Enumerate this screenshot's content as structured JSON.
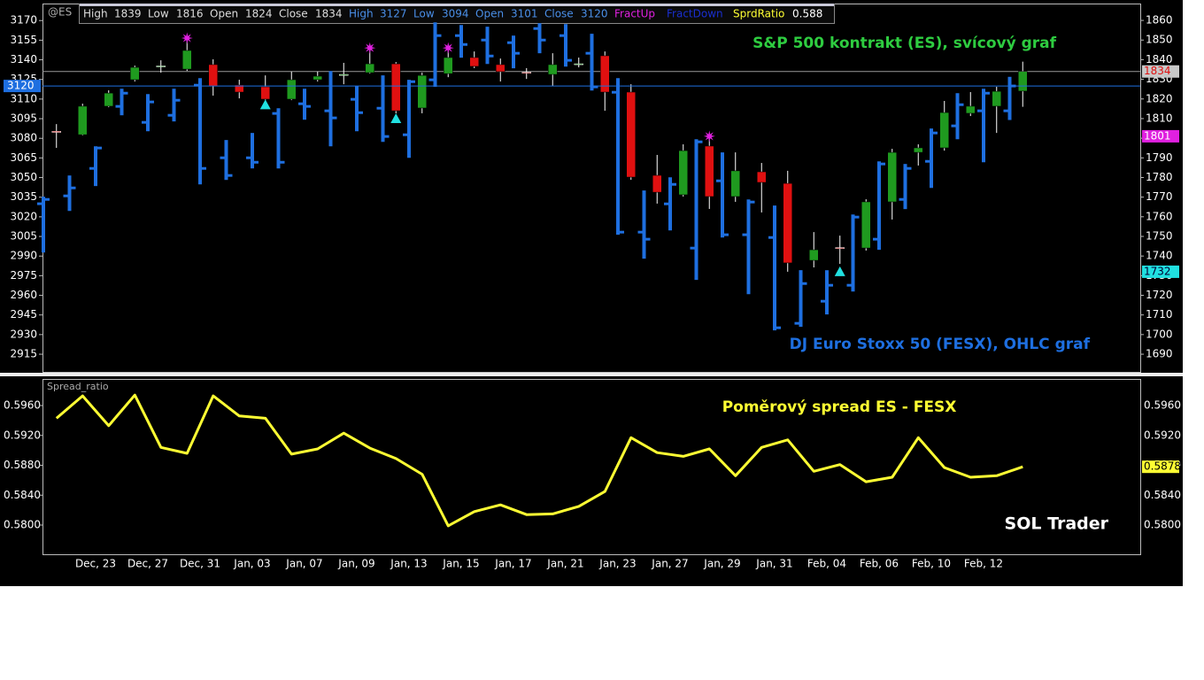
{
  "chart_data": [
    {
      "type": "candlestick",
      "symbol": "@ES",
      "info_labels": {
        "high": "High",
        "low": "Low",
        "open": "Open",
        "close": "Close"
      },
      "annotations": [
        "S&P 500 kontrakt (ES), svícový graf",
        "DJ Euro Stoxx 50 (FESX), OHLC graf"
      ],
      "ylim": [
        2901.5,
        3183
      ],
      "yticks": [
        3170,
        3155,
        3140,
        3125,
        3110,
        3095,
        3080,
        3065,
        3050,
        3035,
        3020,
        3005,
        2990,
        2975,
        2960,
        2945,
        2930,
        2915
      ],
      "y2lim": [
        1681,
        1868.6
      ],
      "y2ticks": [
        1860,
        1850,
        1840,
        1830,
        1820,
        1810,
        1800,
        1790,
        1780,
        1770,
        1760,
        1750,
        1740,
        1730,
        1720,
        1710,
        1700,
        1690
      ],
      "series": [
        {
          "style": "candle",
          "axis": "y2",
          "up_color": "#1f9a1f",
          "down_color": "#e01010",
          "wick_color": "#ffffff",
          "label_color": "#dddddd",
          "open": [
            1803.5,
            1801.8,
            1816.3,
            1829.8,
            1836.4,
            1835.2,
            1837.5,
            1827.1,
            1826.2,
            1819.9,
            1829.8,
            1832.0,
            1833.4,
            1837.9,
            1815.4,
            1832.9,
            1841.1,
            1837.5,
            1833.6,
            1832.5,
            1837.7,
            1842.0,
            1823.5,
            1781.1,
            1771.2,
            1796.0,
            1770.3,
            1782.9,
            1777.0,
            1737.8,
            1744.3,
            1744.1,
            1767.6,
            1792.8,
            1795.1,
            1812.7,
            1816.3,
            1824
          ],
          "high": [
            1807.2,
            1817.6,
            1824.4,
            1837.0,
            1839.7,
            1849.2,
            1840.2,
            1829.8,
            1832.0,
            1833.9,
            1833.9,
            1838.4,
            1844.2,
            1838.8,
            1833.4,
            1844.2,
            1844.2,
            1840.6,
            1835.7,
            1843.3,
            1841.1,
            1844.2,
            1827.5,
            1791.5,
            1796.9,
            1800.5,
            1792.8,
            1787.4,
            1783.4,
            1752.2,
            1750.4,
            1768.9,
            1794.6,
            1796.9,
            1819.0,
            1823.5,
            1826.2,
            1839
          ],
          "low": [
            1795.1,
            1801.4,
            1815.8,
            1828.9,
            1833.4,
            1834.3,
            1821.7,
            1820.3,
            1819.4,
            1819.4,
            1828.9,
            1827.5,
            1832.9,
            1812.7,
            1812.7,
            1831.1,
            1835.7,
            1828.9,
            1830.2,
            1826.6,
            1836.1,
            1814.0,
            1778.8,
            1766.7,
            1770.3,
            1764.0,
            1767.6,
            1762.2,
            1732.0,
            1734.2,
            1736.0,
            1742.8,
            1758.6,
            1786.1,
            1793.7,
            1811.3,
            1802.7,
            1816
          ],
          "close": [
            1803.0,
            1816.3,
            1823.0,
            1836.1,
            1836.8,
            1844.7,
            1826.6,
            1823.5,
            1819.9,
            1829.8,
            1831.6,
            1832.5,
            1837.9,
            1814.0,
            1832.0,
            1841.1,
            1836.6,
            1833.9,
            1833.4,
            1837.5,
            1837.9,
            1823.5,
            1780.2,
            1772.5,
            1793.7,
            1770.3,
            1783.4,
            1777.5,
            1736.5,
            1743.2,
            1744.1,
            1767.6,
            1792.8,
            1795.1,
            1813.1,
            1816.3,
            1823.9,
            1834
          ]
        },
        {
          "style": "ohlc",
          "axis": "y",
          "color": "#1e6fe0",
          "label_color": "#4a8fe8",
          "open": [
            3030,
            3036.0,
            3057.0,
            3104.4,
            3092.2,
            3097.6,
            3120.6,
            3065.1,
            3065.1,
            3099.0,
            3106.4,
            3101.0,
            3109.8,
            3103.0,
            3082.7,
            3124.7,
            3158.5,
            3155.1,
            3153.1,
            3163.9,
            3158.5,
            3145.0,
            3115.2,
            3008.3,
            3029.9,
            2996.1,
            3047.5,
            3006.3,
            3004.2,
            2938.6,
            2955.5,
            2967.7,
            3002.9,
            3033.3,
            3062.4,
            3089.5,
            3101.0,
            3101
          ],
          "high": [
            3035.4,
            3051.6,
            3073.9,
            3117.9,
            3113.8,
            3117.9,
            3126.0,
            3078.7,
            3084.1,
            3103.0,
            3117.9,
            3131.4,
            3119.9,
            3128.1,
            3124.7,
            3168.6,
            3166.6,
            3165.3,
            3158.5,
            3168.0,
            3167.3,
            3159.9,
            3126.0,
            3040.1,
            3050.2,
            3079.3,
            3069.2,
            3033.3,
            3028.6,
            2979.2,
            2979.2,
            3021.8,
            3062.4,
            3060.4,
            3087.5,
            3114.5,
            3117.9,
            3127
          ],
          "low": [
            2992.7,
            3024.5,
            3043.5,
            3097.6,
            3085.4,
            3092.9,
            3044.8,
            3048.2,
            3057.0,
            3057.0,
            3094.2,
            3073.9,
            3085.4,
            3077.3,
            3065.1,
            3119.3,
            3141.6,
            3136.8,
            3133.5,
            3145.0,
            3134.8,
            3116.5,
            3006.3,
            2988.0,
            3009.6,
            2971.8,
            3004.2,
            2960.9,
            2933.2,
            2935.9,
            2945.4,
            2962.9,
            2994.8,
            3025.9,
            3042.1,
            3079.3,
            3061.7,
            3094
          ],
          "close": [
            3033.3,
            3042.1,
            3072.6,
            3114.5,
            3107.8,
            3109.1,
            3057.0,
            3051.6,
            3061.7,
            3061.7,
            3104.4,
            3095.6,
            3099.6,
            3081.4,
            3123.3,
            3158.5,
            3151.7,
            3142.9,
            3145.0,
            3155.1,
            3139.6,
            3119.3,
            3008.3,
            3002.9,
            3044.8,
            3077.3,
            3006.3,
            3031.3,
            2935.2,
            2969.0,
            2967.7,
            3019.8,
            3060.4,
            3057.0,
            3084.1,
            3105.7,
            3114.5,
            3120
          ]
        },
        {
          "name": "FractUp",
          "style": "star",
          "axis": "y2",
          "color": "#e020e0",
          "legend_color": "#e020e0",
          "values": [
            null,
            null,
            null,
            null,
            null,
            1851,
            null,
            null,
            null,
            null,
            null,
            null,
            1846,
            null,
            null,
            1846,
            null,
            null,
            null,
            null,
            null,
            null,
            null,
            null,
            null,
            1801,
            null,
            null,
            null,
            null,
            null,
            null,
            null,
            null,
            null,
            null,
            null,
            null
          ]
        },
        {
          "name": "FractDown",
          "style": "triangle",
          "axis": "y2",
          "color": "#20e0e0",
          "legend_color": "#1a2fd0",
          "values": [
            null,
            null,
            null,
            null,
            null,
            null,
            null,
            null,
            1817,
            null,
            null,
            null,
            null,
            1810,
            null,
            null,
            null,
            null,
            null,
            null,
            null,
            null,
            null,
            null,
            null,
            null,
            null,
            null,
            null,
            null,
            1732,
            null,
            null,
            null,
            null,
            null,
            null,
            null
          ]
        }
      ]
    },
    {
      "type": "line",
      "title": "Spread_ratio",
      "annotations": [
        "Poměrový spread ES - FESX",
        "SOL Trader"
      ],
      "categories": [
        null,
        null,
        "Dec, 23",
        null,
        "Dec, 27",
        null,
        "Dec, 31",
        null,
        "Jan, 03",
        null,
        "Jan, 07",
        null,
        "Jan, 09",
        null,
        "Jan, 13",
        null,
        "Jan, 15",
        null,
        "Jan, 17",
        null,
        "Jan, 21",
        null,
        "Jan, 23",
        null,
        "Jan, 27",
        null,
        "Jan, 29",
        null,
        "Jan, 31",
        null,
        "Feb, 04",
        null,
        "Feb, 06",
        null,
        "Feb, 10",
        null,
        "Feb, 12",
        null
      ],
      "series": [
        {
          "name": "SprdRatio",
          "color": "#ffff33",
          "last_value_label": "0.588",
          "values": [
            0.5943,
            0.5973,
            0.5933,
            0.5974,
            0.5904,
            0.5896,
            0.5973,
            0.5946,
            0.5943,
            0.5895,
            0.5902,
            0.5923,
            0.5903,
            0.5889,
            0.5868,
            0.5799,
            0.5818,
            0.5827,
            0.5814,
            0.5815,
            0.5825,
            0.5845,
            0.5917,
            0.5897,
            0.5892,
            0.5902,
            0.5866,
            0.5904,
            0.5914,
            0.5872,
            0.5881,
            0.5858,
            0.5864,
            0.5917,
            0.5877,
            0.5864,
            0.5866,
            0.5878
          ]
        }
      ],
      "ylim": [
        0.57609,
        0.59956
      ],
      "yticks": [
        {
          "value": 0.596,
          "label": "0.5960"
        },
        {
          "value": 0.592,
          "label": "0.5920"
        },
        {
          "value": 0.588,
          "label": "0.5880"
        },
        {
          "value": 0.584,
          "label": "0.5840"
        },
        {
          "value": 0.58,
          "label": "0.5800"
        }
      ]
    }
  ]
}
